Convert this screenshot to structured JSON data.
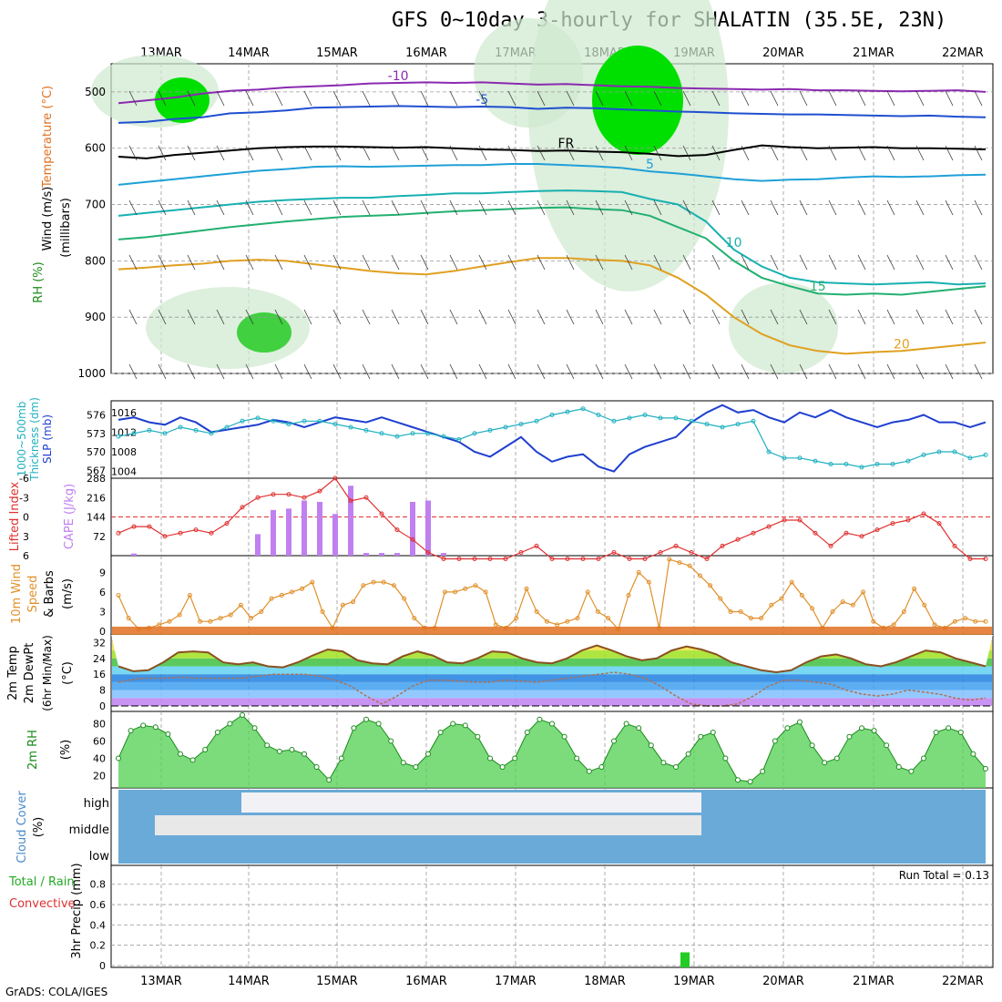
{
  "title": "GFS 0~10day 3-hourly for SHALATIN (35.5E, 23N)",
  "footer": "GrADS: COLA/IGES",
  "chart_data": {
    "type": "line",
    "x_date_labels": [
      "13MAR",
      "14MAR",
      "15MAR",
      "16MAR",
      "17MAR",
      "18MAR",
      "19MAR",
      "20MAR",
      "21MAR",
      "22MAR"
    ],
    "panels": [
      {
        "id": "upper",
        "ylabels": [
          "Wind",
          "(m/s)",
          "Temperature",
          "(°C)",
          "RH (%)"
        ],
        "ylabel_axis": "(millibars)",
        "y_ticks": [
          "500",
          "600",
          "700",
          "800",
          "900",
          "1000"
        ],
        "isotherms": [
          {
            "label": "-10",
            "color": "#8a2ab0",
            "values": [
              520,
              515,
              510,
              503,
              498,
              496,
              492,
              490,
              488,
              485,
              484,
              483,
              484,
              483,
              485,
              487,
              486,
              488,
              490,
              491,
              493,
              494,
              495,
              496,
              495,
              497,
              497,
              498,
              499,
              498,
              497,
              500
            ]
          },
          {
            "label": "-5",
            "color": "#1f4fd0",
            "values": [
              555,
              553,
              548,
              545,
              538,
              536,
              533,
              528,
              527,
              526,
              525,
              526,
              527,
              526,
              527,
              530,
              528,
              529,
              531,
              533,
              535,
              536,
              538,
              539,
              540,
              540,
              541,
              542,
              543,
              542,
              544,
              545
            ]
          },
          {
            "label": "FR",
            "color": "#000000",
            "values": [
              615,
              618,
              612,
              608,
              604,
              600,
              598,
              597,
              597,
              598,
              599,
              598,
              600,
              602,
              603,
              605,
              604,
              606,
              607,
              610,
              614,
              612,
              603,
              595,
              598,
              600,
              599,
              598,
              600,
              600,
              601,
              602
            ]
          },
          {
            "label": "5",
            "color": "#1fa0d8",
            "values": [
              665,
              660,
              655,
              650,
              645,
              640,
              637,
              633,
              632,
              633,
              632,
              631,
              630,
              630,
              628,
              628,
              630,
              632,
              635,
              641,
              645,
              650,
              655,
              658,
              656,
              655,
              652,
              650,
              651,
              650,
              648,
              647
            ]
          },
          {
            "label": "10",
            "color": "#18b0b0",
            "values": [
              720,
              715,
              710,
              705,
              700,
              695,
              692,
              690,
              688,
              688,
              685,
              683,
              680,
              680,
              678,
              676,
              675,
              676,
              678,
              690,
              700,
              730,
              780,
              810,
              830,
              838,
              840,
              842,
              840,
              838,
              842,
              840
            ]
          },
          {
            "label": "15",
            "color": "#22b070",
            "values": [
              762,
              758,
              752,
              746,
              740,
              735,
              730,
              726,
              722,
              720,
              718,
              715,
              712,
              710,
              708,
              706,
              705,
              708,
              710,
              720,
              740,
              760,
              800,
              830,
              845,
              858,
              860,
              858,
              860,
              855,
              850,
              845
            ]
          },
          {
            "label": "20",
            "color": "#e0a020",
            "values": [
              815,
              812,
              808,
              805,
              800,
              798,
              800,
              806,
              812,
              818,
              822,
              824,
              818,
              810,
              802,
              795,
              795,
              798,
              800,
              808,
              830,
              860,
              900,
              930,
              950,
              960,
              965,
              962,
              960,
              955,
              950,
              945
            ]
          }
        ]
      },
      {
        "id": "slp_thickness",
        "ylabels": [
          "1000~500mb",
          "Thickness (dm)",
          "SLP (mb)"
        ],
        "y_ticks_left": [
          "576",
          "573",
          "570",
          "567"
        ],
        "y_ticks_right": [
          "1016",
          "1012",
          "1008",
          "1004"
        ],
        "series": [
          {
            "name": "SLP (mb)",
            "color": "#1f3fd0",
            "values": [
              1014.5,
              1015,
              1014,
              1013.5,
              1015,
              1014,
              1012,
              1012.5,
              1013,
              1013.5,
              1014.5,
              1014,
              1013,
              1014,
              1015,
              1014.5,
              1014,
              1015,
              1014,
              1013,
              1012,
              1011,
              1010,
              1008,
              1007,
              1009,
              1011,
              1008,
              1006,
              1007,
              1007.5,
              1005,
              1004,
              1007.5,
              1009,
              1010,
              1011,
              1014,
              1016,
              1017.5,
              1016,
              1016.5,
              1015,
              1014,
              1016,
              1015,
              1016.5,
              1015,
              1014,
              1013,
              1014,
              1014.5,
              1015.5,
              1014,
              1014,
              1013,
              1014
            ]
          },
          {
            "name": "1000~500mb Thickness (dm)",
            "color": "#20b0c0",
            "values": [
              572.5,
              573,
              573.5,
              573,
              574,
              573.5,
              573,
              574,
              575,
              575.5,
              575,
              574.5,
              575,
              575,
              574.5,
              574,
              573.5,
              573,
              572.5,
              573,
              573,
              572.5,
              572,
              573,
              573.5,
              574,
              574.5,
              575,
              576,
              576.5,
              577,
              576,
              575,
              575.5,
              576,
              575.5,
              575.5,
              575,
              574.5,
              574,
              574.5,
              575,
              570,
              569,
              569,
              568.5,
              568,
              568,
              567.5,
              568,
              568,
              568.5,
              569.5,
              570,
              570,
              569,
              569.5
            ]
          }
        ]
      },
      {
        "id": "li_cape",
        "ylabels": [
          "Lifted Index",
          "CAPE (J/kg)"
        ],
        "y_ticks_left": [
          "-6",
          "-3",
          "0",
          "3",
          "6"
        ],
        "y_ticks_right": [
          "288",
          "216",
          "144",
          "72"
        ],
        "series": [
          {
            "name": "Lifted Index",
            "color": "#e03030",
            "values": [
              2.5,
              1.5,
              1.5,
              3,
              2.5,
              2,
              2.5,
              1,
              -1.5,
              -3,
              -3.5,
              -3.5,
              -3,
              -4,
              -6,
              -2.5,
              -3,
              -0.5,
              2,
              3.5,
              5.5,
              6.5,
              6.5,
              6.5,
              6.5,
              6.5,
              5.5,
              4.5,
              6.5,
              6.5,
              6.5,
              6.5,
              5.5,
              6.5,
              6.5,
              5.5,
              4.5,
              5.5,
              6.5,
              4.5,
              3.5,
              2.5,
              1.5,
              0.5,
              0.5,
              2.5,
              4.5,
              2.5,
              3,
              2,
              1,
              0.5,
              -0.5,
              1,
              4.5,
              6.5,
              6.5
            ]
          },
          {
            "name": "CAPE (J/kg)",
            "color": "#c080f0",
            "values": [
              0,
              8,
              0,
              0,
              0,
              0,
              0,
              0,
              0,
              80,
              170,
              175,
              205,
              200,
              155,
              260,
              10,
              10,
              10,
              200,
              205,
              10,
              0,
              0,
              0,
              0,
              0,
              0,
              0,
              0,
              0,
              0,
              0,
              0,
              0,
              0,
              0,
              0,
              0,
              0,
              0,
              0,
              0,
              0,
              0,
              0,
              0,
              0,
              0,
              0,
              0,
              0,
              0,
              0,
              0,
              0,
              0
            ]
          }
        ]
      },
      {
        "id": "wind10m",
        "ylabels": [
          "10m Wind",
          "Speed",
          "& Barbs",
          "(m/s)"
        ],
        "y_ticks": [
          "9",
          "6",
          "3",
          "0"
        ],
        "series": [
          {
            "name": "10m Wind Speed",
            "color": "#e0902a",
            "values": [
              5.5,
              2,
              0.3,
              0.5,
              1,
              1.5,
              2.5,
              5.5,
              1.5,
              1.5,
              2,
              2.5,
              4,
              2,
              3,
              5,
              5.5,
              6,
              6.5,
              7.5,
              3,
              0.5,
              4,
              4.5,
              7,
              7.5,
              7.5,
              7,
              5,
              2,
              0.5,
              0.5,
              6,
              6,
              6.5,
              7,
              6,
              1,
              0.5,
              2,
              6.5,
              3,
              1.5,
              1,
              1.5,
              2,
              6,
              3,
              2,
              0.3,
              5.5,
              9,
              7.5,
              0.5,
              11,
              10.5,
              10,
              8.5,
              7,
              5,
              3,
              3,
              2,
              2,
              4,
              5,
              7.5,
              5.5,
              3.5,
              0.5,
              3,
              4.5,
              4,
              6,
              1.5,
              0.5,
              1,
              3,
              6.5,
              4,
              1,
              0.5,
              1.5,
              2,
              1.5,
              1.5
            ]
          }
        ]
      },
      {
        "id": "temp2m",
        "ylabels": [
          "2m Temp",
          "2m DewPt",
          "(6hr Min/Max)",
          "(°C)"
        ],
        "y_ticks": [
          "32",
          "24",
          "16",
          "8",
          "0"
        ],
        "series": [
          {
            "name": "2m Temp",
            "color": "#8a5020",
            "values": [
              20,
              17.5,
              18,
              22,
              27,
              27.5,
              27,
              22,
              21,
              22,
              20,
              19.5,
              22,
              25.5,
              28.5,
              27.5,
              23,
              21.5,
              21,
              25,
              27.5,
              25.5,
              22,
              21.5,
              24,
              27.5,
              27,
              24,
              22,
              21.5,
              24,
              28,
              30.5,
              28,
              25,
              23,
              24,
              28,
              30,
              28.5,
              26,
              22,
              20,
              18,
              17,
              18,
              22,
              25,
              26,
              24,
              21,
              20,
              22,
              25,
              28,
              27,
              24,
              22,
              20
            ]
          },
          {
            "name": "2m DewPt",
            "color": "#b07050",
            "values": [
              12,
              13.5,
              14,
              14,
              14.5,
              14,
              14,
              14,
              14,
              15,
              16,
              16,
              16,
              15,
              13,
              10,
              5,
              1,
              5,
              10,
              13,
              13,
              12.5,
              12,
              12,
              13,
              12.5,
              12,
              13,
              14,
              15,
              16,
              17,
              16,
              14,
              10,
              5,
              1,
              0,
              0,
              1,
              5,
              10,
              13,
              13,
              12,
              11,
              8,
              6,
              5,
              6,
              8,
              7,
              6,
              4,
              3,
              4
            ]
          }
        ]
      },
      {
        "id": "rh2m",
        "ylabels": [
          "2m RH",
          "(%)"
        ],
        "y_ticks": [
          "80",
          "60",
          "40",
          "20"
        ],
        "series": [
          {
            "name": "2m RH",
            "color": "#1a8a1a",
            "values": [
              40,
              72,
              78,
              76,
              68,
              45,
              38,
              50,
              70,
              80,
              90,
              75,
              55,
              48,
              50,
              45,
              30,
              15,
              40,
              75,
              85,
              80,
              60,
              35,
              30,
              45,
              70,
              80,
              78,
              65,
              40,
              30,
              40,
              70,
              85,
              80,
              65,
              40,
              25,
              30,
              60,
              80,
              75,
              55,
              35,
              30,
              45,
              65,
              70,
              40,
              15,
              13,
              25,
              60,
              75,
              82,
              55,
              35,
              40,
              65,
              75,
              72,
              55,
              30,
              25,
              40,
              70,
              75,
              70,
              45,
              28
            ]
          }
        ]
      },
      {
        "id": "cloud",
        "ylabels": [
          "Cloud Cover",
          "(%)"
        ],
        "levels": [
          "high",
          "middle",
          "low"
        ]
      },
      {
        "id": "precip",
        "ylabels": [
          "Total / Rain",
          "Convective",
          "3hr Precip (mm)"
        ],
        "y_ticks": [
          "0.8",
          "0.6",
          "0.4",
          "0.2",
          "0"
        ],
        "run_total": "Run Total = 0.13",
        "bars": [
          {
            "x": "19MAR",
            "value": 0.13
          }
        ]
      }
    ]
  }
}
